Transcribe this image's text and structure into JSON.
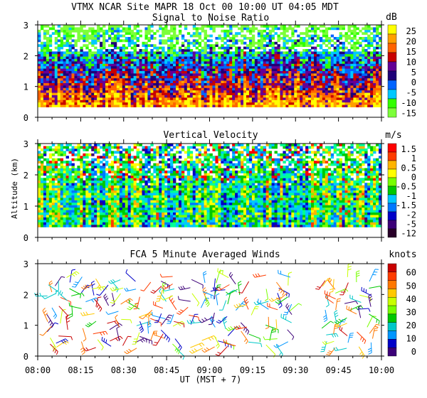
{
  "header": {
    "title": "VTMX  NCAR Site  MAPR 18 Oct 00  10:00 UT  04:05  MDT"
  },
  "shared_axes": {
    "y_label": "Altitude (km)",
    "x_label": "UT  (MST + 7)",
    "x_ticks": [
      "08:00",
      "08:15",
      "08:30",
      "08:45",
      "09:00",
      "09:15",
      "09:30",
      "09:45",
      "10:00"
    ]
  },
  "colors": {
    "snr": [
      "#7dff3a",
      "#32ff00",
      "#00c8ff",
      "#0064ff",
      "#1e0078",
      "#640096",
      "#c80000",
      "#ff6400",
      "#ffa000",
      "#ffff00"
    ],
    "vv": [
      "#280028",
      "#3c0078",
      "#0000c8",
      "#0078ff",
      "#00c8ff",
      "#00ff96",
      "#00c800",
      "#78ff00",
      "#ffff00",
      "#ffb400",
      "#ff3c00",
      "#ff0000"
    ],
    "wind": [
      "#3c0078",
      "#0000c8",
      "#0096ff",
      "#00c8c8",
      "#00c800",
      "#78ff00",
      "#c8ff00",
      "#ffc800",
      "#ff7800",
      "#ff3c00",
      "#c80000"
    ]
  },
  "chart_data": [
    {
      "type": "heatmap",
      "title": "Signal to Noise Ratio",
      "units": "dB",
      "xlabel": "",
      "ylabel": "",
      "xlim": [
        0,
        120
      ],
      "ylim": [
        0,
        3
      ],
      "y_ticks": [
        "0",
        "1",
        "2",
        "3"
      ],
      "legend_labels": [
        "25",
        "20",
        "15",
        "10",
        "5",
        "0",
        "-5",
        "-10",
        "-15"
      ]
    },
    {
      "type": "heatmap",
      "title": "Vertical Velocity",
      "units": "m/s",
      "xlabel": "",
      "ylabel": "Altitude (km)",
      "xlim": [
        0,
        120
      ],
      "ylim": [
        0,
        3
      ],
      "y_ticks": [
        "0",
        "1",
        "2",
        "3"
      ],
      "legend_labels": [
        "1.5",
        "1",
        "0.5",
        "0",
        "-0.5",
        "-1",
        "-1.5",
        "-2",
        "-5",
        "-12"
      ]
    },
    {
      "type": "scatter",
      "title": "FCA 5 Minute Averaged Winds",
      "units": "knots",
      "xlabel": "UT  (MST + 7)",
      "ylabel": "",
      "xlim": [
        0,
        120
      ],
      "ylim": [
        0,
        3
      ],
      "y_ticks": [
        "0",
        "1",
        "2",
        "3"
      ],
      "legend_labels": [
        "60",
        "50",
        "40",
        "30",
        "20",
        "10",
        "0"
      ]
    }
  ]
}
